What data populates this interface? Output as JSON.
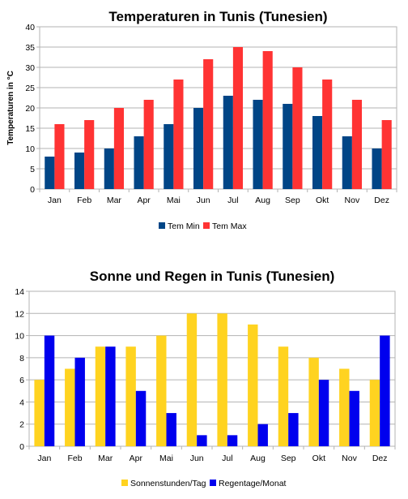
{
  "chart_data": [
    {
      "type": "bar",
      "title": "Temperaturen in Tunis (Tunesien)",
      "xlabel": "",
      "ylabel": "Temperaturen in °C",
      "ylim": [
        0,
        40
      ],
      "yticks": [
        0,
        5,
        10,
        15,
        20,
        25,
        30,
        35,
        40
      ],
      "grid": true,
      "legend_position": "bottom",
      "categories": [
        "Jan",
        "Feb",
        "Mar",
        "Apr",
        "Mai",
        "Jun",
        "Jul",
        "Aug",
        "Sep",
        "Okt",
        "Nov",
        "Dez"
      ],
      "series": [
        {
          "name": "Tem Min",
          "color": "#004586",
          "values": [
            8,
            9,
            10,
            13,
            16,
            20,
            23,
            22,
            21,
            18,
            13,
            10
          ]
        },
        {
          "name": "Tem Max",
          "color": "#ff3333",
          "values": [
            16,
            17,
            20,
            22,
            27,
            32,
            35,
            34,
            30,
            27,
            22,
            17
          ]
        }
      ]
    },
    {
      "type": "bar",
      "title": "Sonne und Regen in Tunis (Tunesien)",
      "xlabel": "",
      "ylabel": "",
      "ylim": [
        0,
        14
      ],
      "yticks": [
        0,
        2,
        4,
        6,
        8,
        10,
        12,
        14
      ],
      "grid": true,
      "legend_position": "bottom",
      "categories": [
        "Jan",
        "Feb",
        "Mar",
        "Apr",
        "Mai",
        "Jun",
        "Jul",
        "Aug",
        "Sep",
        "Okt",
        "Nov",
        "Dez"
      ],
      "series": [
        {
          "name": "Sonnenstunden/Tag",
          "color": "#ffd320",
          "values": [
            6,
            7,
            9,
            9,
            10,
            12,
            12,
            11,
            9,
            8,
            7,
            6
          ]
        },
        {
          "name": "Regentage/Monat",
          "color": "#0000ee",
          "values": [
            10,
            8,
            9,
            5,
            3,
            1,
            1,
            2,
            3,
            6,
            5,
            10
          ]
        }
      ]
    }
  ]
}
